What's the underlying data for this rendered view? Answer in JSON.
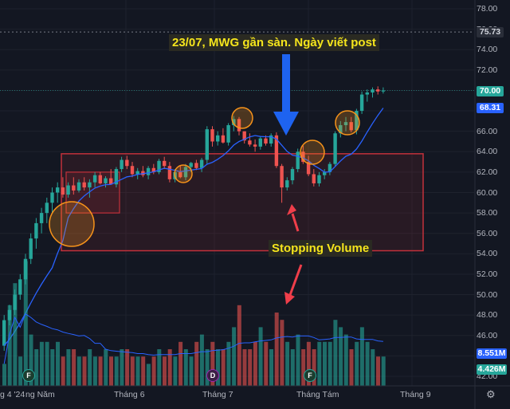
{
  "chart_data": {
    "type": "candlestick",
    "price_axis": {
      "ticks": [
        "78.00",
        "76.00",
        "74.00",
        "72.00",
        "70.00",
        "68.00",
        "66.00",
        "64.00",
        "62.00",
        "60.00",
        "58.00",
        "56.00",
        "54.00",
        "52.00",
        "50.00",
        "48.00",
        "46.00",
        "44.00",
        "42.00"
      ],
      "range": [
        41.5,
        78.8
      ]
    },
    "price_badges": {
      "close": {
        "label": "70.00",
        "value": 70.0,
        "color": "#26a69a"
      },
      "ma": {
        "label": "68.31",
        "value": 68.31,
        "color": "#2962ff"
      },
      "dashed_level": {
        "label": "75.73",
        "value": 75.73,
        "color": "#b2b5be"
      },
      "volume": {
        "label": "8.551M",
        "color": "#2962ff"
      },
      "volume_ma": {
        "label": "4.426M",
        "color": "#26a69a"
      }
    },
    "x_axis": {
      "labels": [
        "g 4 '24",
        "ng Năm",
        "Tháng 6",
        "Tháng 7",
        "Tháng Tám",
        "Tháng 9"
      ]
    },
    "candles": [
      [
        45,
        48,
        44.5,
        47.5
      ],
      [
        47.5,
        49,
        47,
        48.5
      ],
      [
        48.5,
        50.5,
        48,
        50
      ],
      [
        50,
        52,
        49.5,
        51.5
      ],
      [
        51.5,
        54,
        51,
        53.5
      ],
      [
        53.5,
        56,
        53,
        55.5
      ],
      [
        55.5,
        57.5,
        54.5,
        57
      ],
      [
        57,
        58.5,
        56,
        58
      ],
      [
        58,
        59.5,
        57,
        59
      ],
      [
        59,
        60.5,
        58,
        60
      ],
      [
        60,
        61,
        59,
        60.5
      ],
      [
        60.5,
        61.5,
        59.5,
        59.8
      ],
      [
        59.8,
        61,
        59.5,
        60.7
      ],
      [
        60.7,
        61.5,
        59.8,
        60.2
      ],
      [
        60.2,
        61.3,
        60,
        61
      ],
      [
        61,
        61.5,
        60.2,
        60.5
      ],
      [
        60.5,
        61.3,
        59.5,
        61
      ],
      [
        61,
        62,
        60.5,
        61.7
      ],
      [
        61.7,
        62,
        60.8,
        60.9
      ],
      [
        60.9,
        61.6,
        60.5,
        61.4
      ],
      [
        61.4,
        62.3,
        60.8,
        60.8
      ],
      [
        60.8,
        62.5,
        60.5,
        62.3
      ],
      [
        62.3,
        63.5,
        62,
        63.2
      ],
      [
        63.2,
        63.6,
        62.3,
        62.6
      ],
      [
        62.6,
        63,
        61.5,
        61.8
      ],
      [
        61.8,
        62.4,
        61.3,
        62.1
      ],
      [
        62.1,
        62.6,
        61.5,
        61.7
      ],
      [
        61.7,
        62.6,
        61.3,
        62.4
      ],
      [
        62.4,
        62.8,
        61.8,
        62
      ],
      [
        62,
        63.3,
        61.8,
        63.1
      ],
      [
        63.1,
        63.5,
        62.3,
        62.6
      ],
      [
        62.6,
        63,
        61,
        61.3
      ],
      [
        61.3,
        62.3,
        61,
        62
      ],
      [
        62,
        62.6,
        61.4,
        61.5
      ],
      [
        61.5,
        62.8,
        61.2,
        62.5
      ],
      [
        62.5,
        63,
        62,
        62.9
      ],
      [
        62.9,
        63.2,
        62.2,
        62.4
      ],
      [
        62.4,
        63.4,
        62,
        63.2
      ],
      [
        63.2,
        66.5,
        62.8,
        66.2
      ],
      [
        66.2,
        66.5,
        64.5,
        65
      ],
      [
        65,
        66,
        64.6,
        65.6
      ],
      [
        65.6,
        66.3,
        64.8,
        64.9
      ],
      [
        64.9,
        66.8,
        64.6,
        66.6
      ],
      [
        66.6,
        67.5,
        66,
        67.2
      ],
      [
        67.2,
        67.4,
        65.6,
        66
      ],
      [
        66,
        66,
        64.8,
        65.1
      ],
      [
        65.1,
        65.8,
        64.5,
        64.7
      ],
      [
        64.7,
        65.2,
        64,
        64.5
      ],
      [
        64.5,
        65.5,
        64.2,
        65.3
      ],
      [
        65.3,
        65.6,
        64.6,
        64.8
      ],
      [
        64.8,
        65.8,
        64.5,
        65.6
      ],
      [
        65.6,
        65.9,
        62.4,
        62.6
      ],
      [
        62.6,
        62.8,
        59,
        60.5
      ],
      [
        60.5,
        61.5,
        60.2,
        61.2
      ],
      [
        61.2,
        62.5,
        60.8,
        62.3
      ],
      [
        62.3,
        64.3,
        62,
        64
      ],
      [
        64,
        64.6,
        62.8,
        63
      ],
      [
        63,
        63.6,
        61.6,
        61.8
      ],
      [
        61.8,
        62.3,
        60.6,
        60.9
      ],
      [
        60.9,
        62,
        60.6,
        61.7
      ],
      [
        61.7,
        62.3,
        61.3,
        62
      ],
      [
        62,
        63,
        61.7,
        62.8
      ],
      [
        62.8,
        66,
        62.5,
        65.8
      ],
      [
        65.8,
        67,
        65.4,
        66.6
      ],
      [
        66.6,
        67.4,
        66,
        66.9
      ],
      [
        66.9,
        67.4,
        65.9,
        66.1
      ],
      [
        66.1,
        68.2,
        65.7,
        68
      ],
      [
        68,
        69.9,
        67.7,
        69.6
      ],
      [
        69.6,
        70.1,
        68.9,
        69.8
      ],
      [
        69.8,
        70.3,
        69.3,
        70.1
      ],
      [
        70.1,
        70.4,
        69.6,
        69.9
      ],
      [
        69.9,
        70.3,
        69.7,
        70
      ]
    ],
    "volume": [
      3,
      11,
      14,
      4,
      17,
      7,
      5,
      6,
      6,
      5,
      6,
      4,
      5,
      5,
      4,
      4,
      5,
      4,
      4,
      5,
      4,
      4,
      5,
      5,
      4,
      4,
      4,
      3,
      4,
      5,
      4,
      5,
      4,
      6,
      5,
      4,
      6,
      7,
      5,
      6,
      5,
      5,
      6,
      8,
      11,
      5,
      5,
      6,
      8,
      6,
      5,
      10,
      9,
      6,
      5,
      7,
      5,
      6,
      5,
      6,
      6,
      6,
      9,
      8,
      7,
      5,
      6,
      8,
      6,
      5,
      4,
      4
    ],
    "annotations": {
      "main": "23/07, MWG gần sàn. Ngày viết post",
      "stop": "Stopping Volume"
    },
    "markers": [
      {
        "label": "F",
        "color": "#26a69a"
      },
      {
        "label": "D",
        "color": "#9c27b0"
      },
      {
        "label": "F",
        "color": "#26a69a"
      }
    ],
    "colors": {
      "up": "#26a69a",
      "down": "#ef5350",
      "ma": "#2962ff",
      "box": "#c2313b",
      "circle": "#f7931a",
      "arrow_blue": "#1e63f0",
      "arrow_red": "#ef3e4a"
    }
  }
}
